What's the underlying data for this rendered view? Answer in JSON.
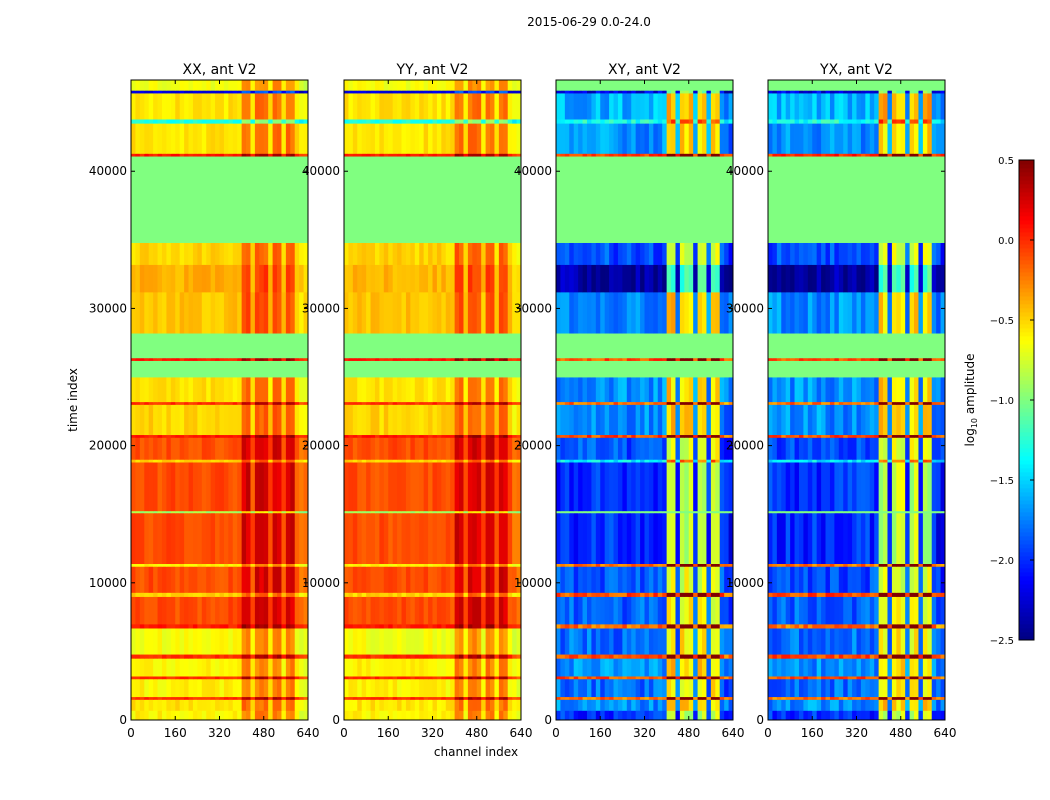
{
  "chart_data": {
    "type": "heatmap",
    "suptitle": "2015-06-29 0.0-24.0",
    "xlabel": "channel index",
    "ylabel": "time index",
    "xlim": [
      0,
      640
    ],
    "ylim": [
      0,
      46650
    ],
    "xticks": [
      "0",
      "160",
      "320",
      "480",
      "640"
    ],
    "xtick_values": [
      0,
      160,
      320,
      480,
      640
    ],
    "yticks": [
      "0",
      "10000",
      "20000",
      "30000",
      "40000"
    ],
    "ytick_values": [
      0,
      10000,
      20000,
      30000,
      40000
    ],
    "panels": [
      {
        "title": "XX, ant V2",
        "kind": "auto"
      },
      {
        "title": "YY, ant V2",
        "kind": "auto"
      },
      {
        "title": "XY, ant V2",
        "kind": "cross"
      },
      {
        "title": "YX, ant V2",
        "kind": "cross"
      }
    ],
    "time_bands": [
      {
        "t": [
          0,
          700
        ],
        "auto": -0.6,
        "cross": -2.0
      },
      {
        "t": [
          700,
          1500
        ],
        "auto": -0.55,
        "cross": -1.7
      },
      {
        "t": [
          1500,
          1700
        ],
        "auto": 0.0,
        "cross": -0.2
      },
      {
        "t": [
          1700,
          3000
        ],
        "auto": -0.6,
        "cross": -1.8
      },
      {
        "t": [
          3000,
          3200
        ],
        "auto": 0.0,
        "cross": -0.1
      },
      {
        "t": [
          3200,
          4500
        ],
        "auto": -0.6,
        "cross": -1.7
      },
      {
        "t": [
          4500,
          4800
        ],
        "auto": 0.0,
        "cross": -0.1
      },
      {
        "t": [
          4800,
          6700
        ],
        "auto": -0.65,
        "cross": -1.8
      },
      {
        "t": [
          6700,
          7000
        ],
        "auto": 0.05,
        "cross": -0.2
      },
      {
        "t": [
          7000,
          9000
        ],
        "auto": -0.1,
        "cross": -1.85
      },
      {
        "t": [
          9000,
          9300
        ],
        "auto": -0.5,
        "cross": -0.1
      },
      {
        "t": [
          9300,
          11200
        ],
        "auto": -0.1,
        "cross": -1.9
      },
      {
        "t": [
          11200,
          11400
        ],
        "auto": -0.6,
        "cross": -0.2
      },
      {
        "t": [
          11400,
          15100
        ],
        "auto": -0.1,
        "cross": -2.0
      },
      {
        "t": [
          15100,
          15250
        ],
        "auto": -0.9,
        "cross": -1.0
      },
      {
        "t": [
          15250,
          18800
        ],
        "auto": -0.1,
        "cross": -2.0
      },
      {
        "t": [
          18800,
          19000
        ],
        "auto": -0.5,
        "cross": -1.4
      },
      {
        "t": [
          19000,
          20600
        ],
        "auto": -0.1,
        "cross": -1.9
      },
      {
        "t": [
          20600,
          20800
        ],
        "auto": 0.05,
        "cross": -0.1
      },
      {
        "t": [
          20800,
          23000
        ],
        "auto": -0.5,
        "cross": -1.7
      },
      {
        "t": [
          23000,
          23200
        ],
        "auto": 0.0,
        "cross": -0.2
      },
      {
        "t": [
          23200,
          25000
        ],
        "auto": -0.55,
        "cross": -1.7
      },
      {
        "t": [
          25000,
          26200
        ],
        "auto": -1.0,
        "cross": -1.0
      },
      {
        "t": [
          26200,
          26400
        ],
        "auto": 0.05,
        "cross": -0.1
      },
      {
        "t": [
          26400,
          28200
        ],
        "auto": -1.0,
        "cross": -1.0
      },
      {
        "t": [
          28200,
          31200
        ],
        "auto": -0.45,
        "cross": -1.7
      },
      {
        "t": [
          31200,
          33200
        ],
        "auto": -0.4,
        "cross": -2.4
      },
      {
        "t": [
          33200,
          34800
        ],
        "auto": -0.5,
        "cross": -1.9
      },
      {
        "t": [
          34800,
          41100
        ],
        "auto": -1.0,
        "cross": -1.0
      },
      {
        "t": [
          41100,
          41300
        ],
        "auto": 0.05,
        "cross": 0.0
      },
      {
        "t": [
          41300,
          43500
        ],
        "auto": -0.55,
        "cross": -1.7
      },
      {
        "t": [
          43500,
          43800
        ],
        "auto": -1.3,
        "cross": -1.3
      },
      {
        "t": [
          43800,
          45700
        ],
        "auto": -0.55,
        "cross": -1.6
      },
      {
        "t": [
          45700,
          45900
        ],
        "auto": -2.2,
        "cross": -2.2
      },
      {
        "t": [
          45900,
          46650
        ],
        "auto": -0.65,
        "cross": -1.0
      }
    ],
    "channel_profile": {
      "bright_columns": [
        [
          400,
          440
        ],
        [
          450,
          500
        ],
        [
          505,
          550
        ],
        [
          560,
          600
        ]
      ],
      "auto_offset": 0.35,
      "cross_offset": 1.2
    },
    "colorbar": {
      "label": "log10 amplitude",
      "label_main": "log",
      "label_sub": "10",
      "label_rest": " amplitude",
      "range": [
        -2.5,
        0.5
      ],
      "ticks": [
        "0.5",
        "0.0",
        "−0.5",
        "−1.0",
        "−1.5",
        "−2.0",
        "−2.5"
      ],
      "tick_values": [
        0.5,
        0.0,
        -0.5,
        -1.0,
        -1.5,
        -2.0,
        -2.5
      ],
      "colormap": "jet"
    }
  }
}
